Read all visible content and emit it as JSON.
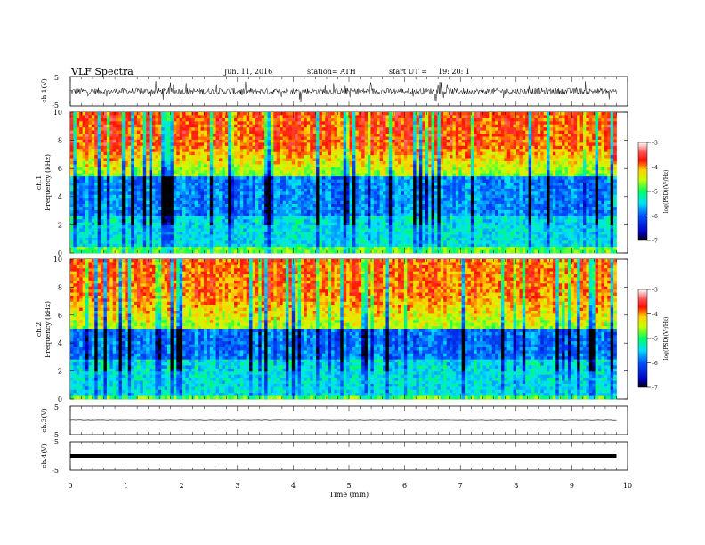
{
  "header": {
    "title": "VLF Spectra",
    "date": "Jun. 11, 2016",
    "station": "station= ATH",
    "start": "start UT =",
    "start_time": "19: 20: 1"
  },
  "axes": {
    "ch1_waveform_label": "ch.1(V)",
    "ch1_spec_label_ch": "ch.1",
    "ch1_spec_label_freq": "Frequency (kHz)",
    "ch2_spec_label_ch": "ch.2",
    "ch2_spec_label_freq": "Frequency (kHz)",
    "ch3_waveform_label": "ch.3(V)",
    "ch4_waveform_label": "ch.4(V)",
    "xlabel": "Time (min)",
    "colorbar_label": "log(PSD)(V²/Hz)"
  },
  "chart_data": [
    {
      "panel": "ch1-waveform",
      "type": "line",
      "ylabel": "ch.1(V)",
      "yticks": [
        "5",
        "-5"
      ],
      "ylim": [
        -5,
        5
      ],
      "xlim": [
        0,
        10
      ],
      "data_extent_min": 9.8,
      "description_level": "dense noisy signal, amplitude about ±2 V"
    },
    {
      "panel": "ch1-spectrogram",
      "type": "heatmap",
      "ylabel": "Frequency (kHz)",
      "yticks": [
        "0",
        "2",
        "4",
        "6",
        "8",
        "10"
      ],
      "ylim": [
        0,
        10
      ],
      "xlim": [
        0,
        10
      ],
      "data_extent_min": 9.8,
      "colorbar": {
        "label": "log(PSD)(V²/Hz)",
        "ticks": [
          "-3",
          "-4",
          "-5",
          "-6",
          "-7"
        ],
        "range": [
          -7,
          -3
        ]
      }
    },
    {
      "panel": "ch2-spectrogram",
      "type": "heatmap",
      "ylabel": "Frequency (kHz)",
      "yticks": [
        "0",
        "2",
        "4",
        "6",
        "8",
        "10"
      ],
      "ylim": [
        0,
        10
      ],
      "xlim": [
        0,
        10
      ],
      "data_extent_min": 9.8,
      "colorbar": {
        "label": "log(PSD)(V²/Hz)",
        "ticks": [
          "-3",
          "-4",
          "-5",
          "-6",
          "-7"
        ],
        "range": [
          -7,
          -3
        ]
      }
    },
    {
      "panel": "ch3-waveform",
      "type": "line",
      "ylabel": "ch.3(V)",
      "yticks": [
        "5",
        "-5"
      ],
      "ylim": [
        -5,
        5
      ],
      "xlim": [
        0,
        10
      ],
      "data_extent_min": 9.8,
      "level": 0
    },
    {
      "panel": "ch4-waveform",
      "type": "line",
      "ylabel": "ch.4(V)",
      "yticks": [
        "5",
        "-5"
      ],
      "ylim": [
        -5,
        5
      ],
      "xlim": [
        0,
        10
      ],
      "data_extent_min": 9.8,
      "level": 0
    }
  ],
  "xaxis": {
    "ticks": [
      "0",
      "1",
      "2",
      "3",
      "4",
      "5",
      "6",
      "7",
      "8",
      "9",
      "10"
    ],
    "range": [
      0,
      10
    ]
  },
  "colors": {
    "colormap": [
      "#000000",
      "#0000ff",
      "#00a0ff",
      "#00ff80",
      "#ffff00",
      "#ff0000",
      "#ffffff"
    ]
  }
}
